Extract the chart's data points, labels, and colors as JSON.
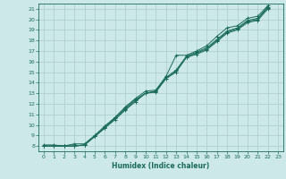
{
  "title": "",
  "xlabel": "Humidex (Indice chaleur)",
  "ylabel": "",
  "xlim": [
    -0.5,
    23.5
  ],
  "ylim": [
    7.5,
    21.5
  ],
  "xticks": [
    0,
    1,
    2,
    3,
    4,
    5,
    6,
    7,
    8,
    9,
    10,
    11,
    12,
    13,
    14,
    15,
    16,
    17,
    18,
    19,
    20,
    21,
    22,
    23
  ],
  "yticks": [
    8,
    9,
    10,
    11,
    12,
    13,
    14,
    15,
    16,
    17,
    18,
    19,
    20,
    21
  ],
  "bg_color": "#cce8e8",
  "grid_color": "#aacccc",
  "line_color": "#1a6b5a",
  "lines": [
    [
      0,
      8.1,
      1,
      8.1,
      2,
      8.0,
      3,
      8.2,
      4,
      8.2,
      5,
      9.0,
      6,
      9.9,
      7,
      10.7,
      8,
      11.7,
      9,
      12.5,
      10,
      13.2,
      11,
      13.3,
      12,
      14.6,
      13,
      16.6,
      14,
      16.6,
      15,
      17.0,
      16,
      17.5,
      17,
      18.4,
      18,
      19.2,
      19,
      19.4,
      20,
      20.1,
      21,
      20.3,
      22,
      21.3
    ],
    [
      0,
      8.0,
      1,
      8.0,
      2,
      8.0,
      3,
      8.0,
      4,
      8.1,
      5,
      8.9,
      6,
      9.8,
      7,
      10.7,
      8,
      11.6,
      9,
      12.4,
      10,
      13.0,
      11,
      13.2,
      12,
      14.5,
      13,
      15.2,
      14,
      16.5,
      15,
      16.9,
      16,
      17.3,
      17,
      18.1,
      18,
      18.9,
      19,
      19.2,
      20,
      19.9,
      21,
      20.1,
      22,
      21.2
    ],
    [
      0,
      8.0,
      1,
      8.0,
      2,
      8.0,
      3,
      8.0,
      4,
      8.1,
      5,
      8.9,
      6,
      9.7,
      7,
      10.6,
      8,
      11.5,
      9,
      12.3,
      10,
      13.0,
      11,
      13.2,
      12,
      14.4,
      13,
      15.1,
      14,
      16.4,
      15,
      16.8,
      16,
      17.2,
      17,
      18.0,
      18,
      18.8,
      19,
      19.1,
      20,
      19.8,
      21,
      20.0,
      22,
      21.1
    ],
    [
      0,
      8.0,
      1,
      8.0,
      2,
      8.0,
      3,
      8.0,
      4,
      8.1,
      5,
      8.9,
      6,
      9.7,
      7,
      10.5,
      8,
      11.4,
      9,
      12.2,
      10,
      13.0,
      11,
      13.1,
      12,
      14.4,
      13,
      15.0,
      14,
      16.4,
      15,
      16.7,
      16,
      17.1,
      17,
      17.9,
      18,
      18.7,
      19,
      19.0,
      20,
      19.7,
      21,
      19.9,
      22,
      21.0
    ]
  ]
}
